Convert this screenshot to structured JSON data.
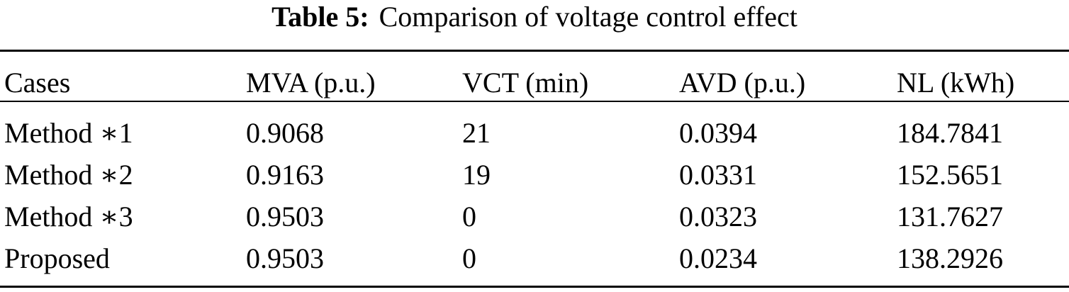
{
  "caption": {
    "label": "Table 5:",
    "text": "Comparison of voltage control effect"
  },
  "table": {
    "headers": [
      "Cases",
      "MVA (p.u.)",
      "VCT (min)",
      "AVD (p.u.)",
      "NL (kWh)"
    ],
    "rows": [
      [
        "Method ∗1",
        "0.9068",
        "21",
        "0.0394",
        "184.7841"
      ],
      [
        "Method ∗2",
        "0.9163",
        "19",
        "0.0331",
        "152.5651"
      ],
      [
        "Method ∗3",
        "0.9503",
        "0",
        "0.0323",
        "131.7627"
      ],
      [
        "Proposed",
        "0.9503",
        "0",
        "0.0234",
        "138.2926"
      ]
    ]
  }
}
